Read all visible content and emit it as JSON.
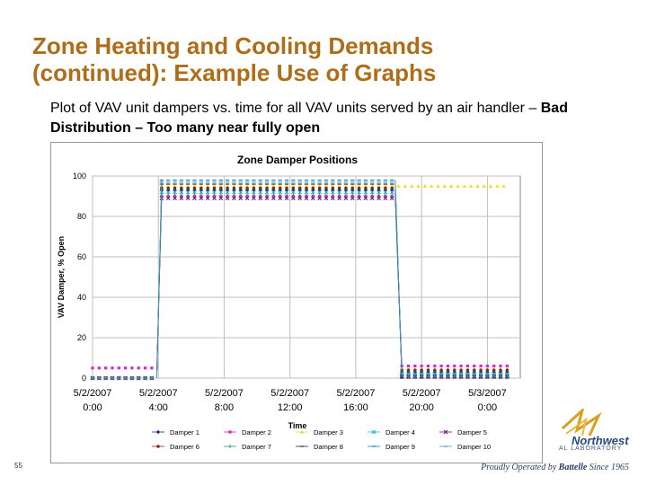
{
  "slide": {
    "title_line1": "Zone Heating and Cooling Demands",
    "title_line2": "(continued):  Example Use of Graphs",
    "subtitle_plain": "Plot of VAV unit dampers vs. time for all VAV units served by an air handler – ",
    "subtitle_bold": "Bad Distribution – Too many near fully open",
    "page_number": "55"
  },
  "logo": {
    "line1": "Northwest",
    "line2": "AL LABORATORY"
  },
  "footer": {
    "tagline_pre": "Proudly Operated by ",
    "tagline_brand": "Battelle",
    "tagline_post": " Since 1965"
  },
  "colors": {
    "title": "#b06d18",
    "chart_border": "#999999"
  },
  "chart_data": {
    "type": "line",
    "title": "Zone Damper Positions",
    "xlabel": "Time",
    "ylabel": "VAV Damper, % Open",
    "ylim": [
      0,
      100
    ],
    "yticks": [
      0,
      20,
      40,
      60,
      80,
      100
    ],
    "x_range": [
      0,
      26
    ],
    "xticks": [
      {
        "x": 0,
        "line1": "5/2/2007",
        "line2": "0:00"
      },
      {
        "x": 4,
        "line1": "5/2/2007",
        "line2": "4:00"
      },
      {
        "x": 8,
        "line1": "5/2/2007",
        "line2": "8:00"
      },
      {
        "x": 12,
        "line1": "5/2/2007",
        "line2": "12:00"
      },
      {
        "x": 16,
        "line1": "5/2/2007",
        "line2": "16:00"
      },
      {
        "x": 20,
        "line1": "5/2/2007",
        "line2": "20:00"
      },
      {
        "x": 24,
        "line1": "5/3/2007",
        "line2": "0:00"
      }
    ],
    "grid": true,
    "legend_position": "bottom",
    "series": [
      {
        "name": "Damper 1",
        "color": "#1a2a8c",
        "marker": "diamond",
        "segments": [
          {
            "x0": 0,
            "x1": 3.9,
            "y": 0
          },
          {
            "x0": 4.2,
            "x1": 18.4,
            "y": 93
          },
          {
            "x0": 18.8,
            "x1": 25.2,
            "y": 3
          }
        ]
      },
      {
        "name": "Damper 2",
        "color": "#e020c8",
        "marker": "square",
        "segments": [
          {
            "x0": 0,
            "x1": 3.9,
            "y": 5
          },
          {
            "x0": 4.2,
            "x1": 18.4,
            "y": 90
          },
          {
            "x0": 18.8,
            "x1": 25.2,
            "y": 6
          }
        ]
      },
      {
        "name": "Damper 3",
        "color": "#e8e020",
        "marker": "triangle",
        "segments": [
          {
            "x0": 0,
            "x1": 3.9,
            "y": 0
          },
          {
            "x0": 4.2,
            "x1": 25.2,
            "y": 95
          }
        ]
      },
      {
        "name": "Damper 4",
        "color": "#20b8d8",
        "marker": "x",
        "segments": [
          {
            "x0": 0,
            "x1": 3.9,
            "y": 0
          },
          {
            "x0": 4.2,
            "x1": 18.4,
            "y": 92
          },
          {
            "x0": 18.8,
            "x1": 25.2,
            "y": 2
          }
        ]
      },
      {
        "name": "Damper 5",
        "color": "#6a1a7a",
        "marker": "x",
        "segments": [
          {
            "x0": 0,
            "x1": 3.9,
            "y": 0
          },
          {
            "x0": 4.2,
            "x1": 18.4,
            "y": 89
          },
          {
            "x0": 18.8,
            "x1": 25.2,
            "y": 1
          }
        ]
      },
      {
        "name": "Damper 6",
        "color": "#8a2a10",
        "marker": "circle",
        "segments": [
          {
            "x0": 0,
            "x1": 3.9,
            "y": 0
          },
          {
            "x0": 4.2,
            "x1": 18.4,
            "y": 94
          },
          {
            "x0": 18.8,
            "x1": 25.2,
            "y": 4
          }
        ]
      },
      {
        "name": "Damper 7",
        "color": "#20a080",
        "marker": "bar",
        "segments": [
          {
            "x0": 0,
            "x1": 3.9,
            "y": 0
          },
          {
            "x0": 4.2,
            "x1": 18.4,
            "y": 91
          },
          {
            "x0": 18.8,
            "x1": 25.2,
            "y": 2
          }
        ]
      },
      {
        "name": "Damper 8",
        "color": "#2a2a2a",
        "marker": "dash",
        "segments": [
          {
            "x0": 0,
            "x1": 3.9,
            "y": 0
          },
          {
            "x0": 4.2,
            "x1": 18.4,
            "y": 96
          },
          {
            "x0": 18.8,
            "x1": 25.2,
            "y": 0
          }
        ]
      },
      {
        "name": "Damper 9",
        "color": "#1878c8",
        "marker": "dash",
        "segments": [
          {
            "x0": 0,
            "x1": 3.9,
            "y": 0
          },
          {
            "x0": 4.2,
            "x1": 18.4,
            "y": 98
          },
          {
            "x0": 18.8,
            "x1": 25.2,
            "y": 1
          }
        ]
      },
      {
        "name": "Damper 10",
        "color": "#40a0c0",
        "marker": "dash",
        "segments": [
          {
            "x0": 0,
            "x1": 3.9,
            "y": 0
          },
          {
            "x0": 4.2,
            "x1": 18.4,
            "y": 97
          },
          {
            "x0": 18.8,
            "x1": 25.2,
            "y": 2
          }
        ]
      }
    ]
  }
}
